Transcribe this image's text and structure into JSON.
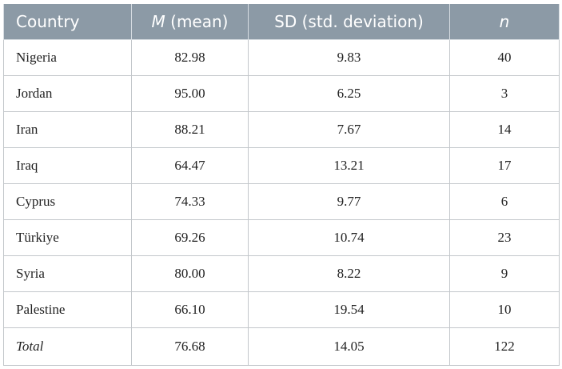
{
  "table": {
    "headers": {
      "country": "Country",
      "mean_symbol": "M",
      "mean_rest": " (mean)",
      "sd": "SD (std. deviation)",
      "n": "n"
    },
    "rows": [
      {
        "country": "Nigeria",
        "mean": "82.98",
        "sd": "9.83",
        "n": "40"
      },
      {
        "country": "Jordan",
        "mean": "95.00",
        "sd": "6.25",
        "n": "3"
      },
      {
        "country": "Iran",
        "mean": "88.21",
        "sd": "7.67",
        "n": "14"
      },
      {
        "country": "Iraq",
        "mean": "64.47",
        "sd": "13.21",
        "n": "17"
      },
      {
        "country": "Cyprus",
        "mean": "74.33",
        "sd": "9.77",
        "n": "6"
      },
      {
        "country": "Türkiye",
        "mean": "69.26",
        "sd": "10.74",
        "n": "23"
      },
      {
        "country": "Syria",
        "mean": "80.00",
        "sd": "8.22",
        "n": "9"
      },
      {
        "country": "Palestine",
        "mean": "66.10",
        "sd": "19.54",
        "n": "10"
      }
    ],
    "total": {
      "country": "Total",
      "mean": "76.68",
      "sd": "14.05",
      "n": "122"
    }
  },
  "colors": {
    "header_background": "#8c9aa6",
    "header_text": "#ffffff",
    "grid_line": "#c3c7cb"
  }
}
